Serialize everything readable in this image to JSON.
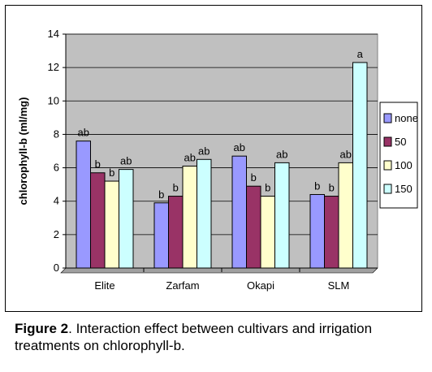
{
  "chart_data": {
    "type": "bar",
    "title": "",
    "xlabel": "",
    "ylabel": "chlorophyll-b (ml/mg)",
    "ylim": [
      0,
      14
    ],
    "yticks": [
      0,
      2,
      4,
      6,
      8,
      10,
      12,
      14
    ],
    "grid": true,
    "legend_position": "right",
    "categories": [
      "Elite",
      "Zarfam",
      "Okapi",
      "SLM"
    ],
    "series": [
      {
        "name": "none",
        "color": "#9999ff",
        "values": [
          7.6,
          3.9,
          6.7,
          4.4
        ],
        "labels": [
          "ab",
          "b",
          "ab",
          "b"
        ]
      },
      {
        "name": "50",
        "color": "#993366",
        "values": [
          5.7,
          4.3,
          4.9,
          4.3
        ],
        "labels": [
          "b",
          "b",
          "b",
          "b"
        ]
      },
      {
        "name": "100",
        "color": "#ffffcc",
        "values": [
          5.2,
          6.1,
          4.3,
          6.3
        ],
        "labels": [
          "b",
          "ab",
          "b",
          "ab"
        ]
      },
      {
        "name": "150",
        "color": "#ccffff",
        "values": [
          5.9,
          6.5,
          6.3,
          12.3
        ],
        "labels": [
          "ab",
          "ab",
          "ab",
          "a"
        ]
      }
    ],
    "plot_background": "#c0c0c0"
  },
  "caption": {
    "label": "Figure 2",
    "text": ". Interaction effect between cultivars and irrigation treatments on chlorophyll-b."
  }
}
